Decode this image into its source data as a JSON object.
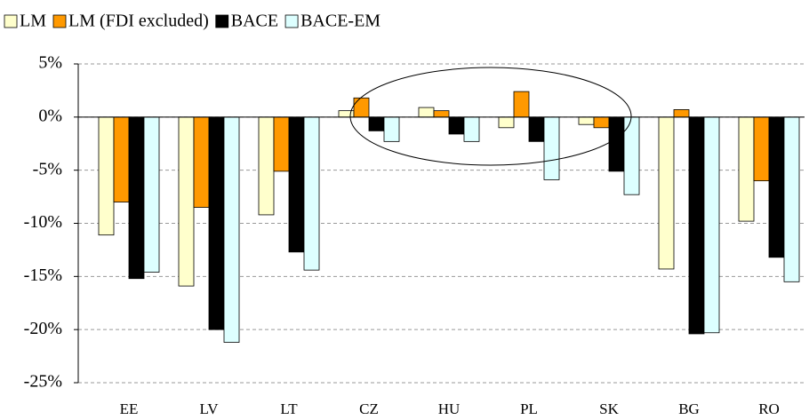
{
  "chart_data": {
    "type": "bar",
    "categories": [
      "EE",
      "LV",
      "LT",
      "CZ",
      "HU",
      "PL",
      "SK",
      "BG",
      "RO"
    ],
    "series": [
      {
        "name": "LM",
        "color": "#ffffcc",
        "values": [
          -11.1,
          -15.9,
          -9.2,
          0.6,
          0.9,
          -1.0,
          -0.7,
          -14.3,
          -9.8
        ]
      },
      {
        "name": "LM (FDI excluded)",
        "color": "#ff9900",
        "values": [
          -8.0,
          -8.5,
          -5.1,
          1.8,
          0.6,
          2.4,
          -1.0,
          0.7,
          -6.0
        ]
      },
      {
        "name": "BACE",
        "color": "#000000",
        "values": [
          -15.2,
          -20.0,
          -12.7,
          -1.3,
          -1.6,
          -2.3,
          -5.1,
          -20.4,
          -13.2
        ]
      },
      {
        "name": "BACE-EM",
        "color": "#ddffff",
        "values": [
          -14.6,
          -21.2,
          -14.4,
          -2.3,
          -2.3,
          -5.9,
          -7.3,
          -20.3,
          -15.5
        ]
      }
    ],
    "ylim": [
      -25,
      5
    ],
    "yticks": [
      {
        "value": 5,
        "label": "5%"
      },
      {
        "value": 0,
        "label": "0%"
      },
      {
        "value": -5,
        "label": "-5%"
      },
      {
        "value": -10,
        "label": "-10%"
      },
      {
        "value": -15,
        "label": "-15%"
      },
      {
        "value": -20,
        "label": "-20%"
      },
      {
        "value": -25,
        "label": "-25%"
      }
    ],
    "grid": true
  }
}
